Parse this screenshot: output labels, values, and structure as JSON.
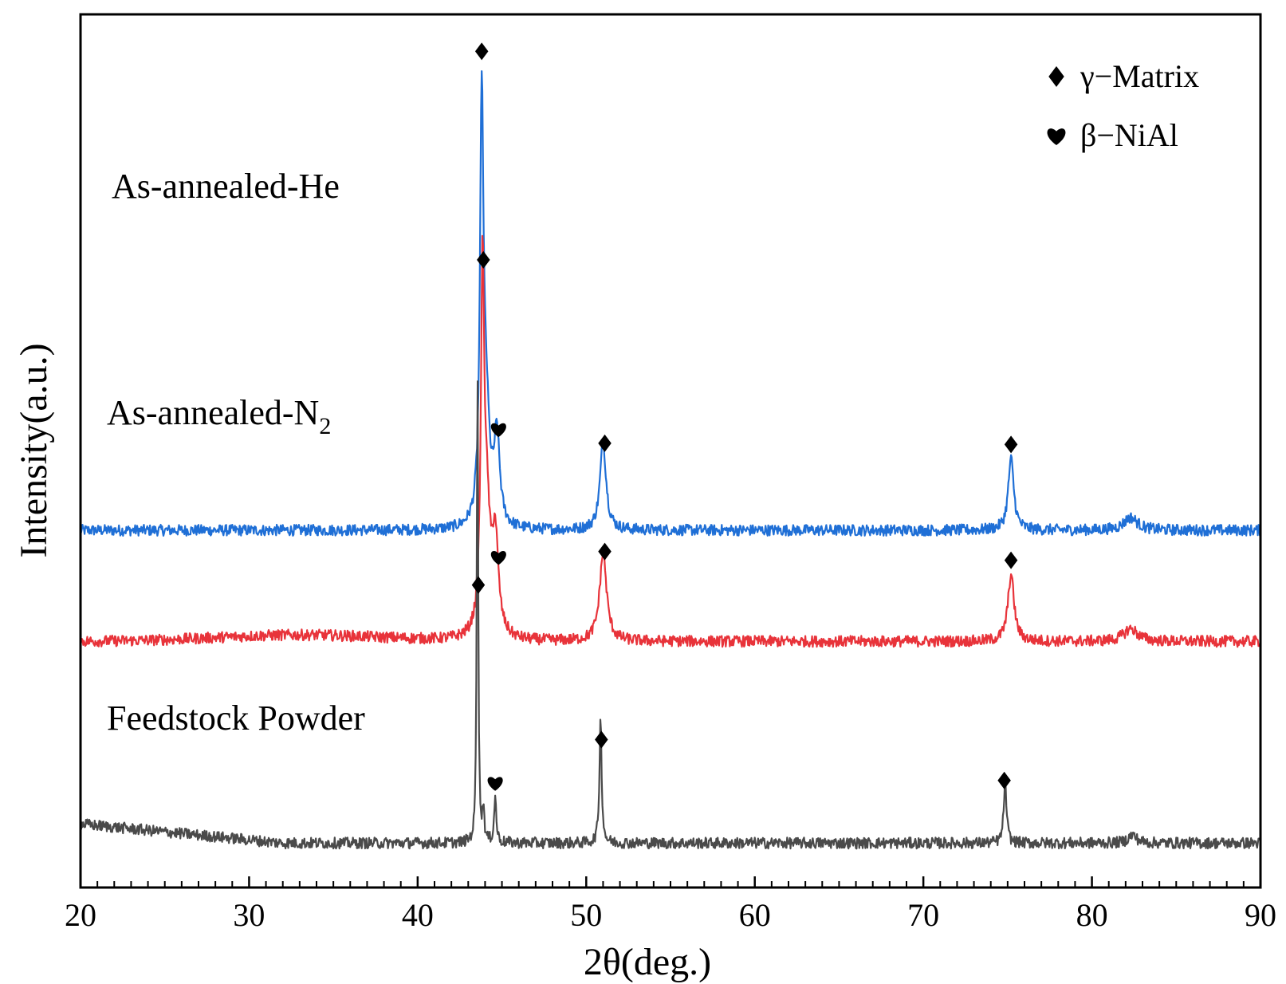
{
  "chart_data": {
    "type": "line",
    "xlabel": "2θ(deg.)",
    "ylabel": "Intensity(a.u.)",
    "xlim": [
      20,
      90
    ],
    "x_ticks": [
      "20",
      "30",
      "40",
      "50",
      "60",
      "70",
      "80",
      "90"
    ],
    "x_minor_step": 1,
    "y_ticks_shown": false,
    "grid": false,
    "legend": {
      "position": "top-right",
      "entries": [
        {
          "marker": "diamond",
          "label": "γ−Matrix"
        },
        {
          "marker": "heart",
          "label": "β−NiAl"
        }
      ]
    },
    "series": [
      {
        "name": "As-annealed-He",
        "label_main": "As-annealed-He",
        "label_sub": "",
        "color": "#1f6fd6",
        "baseline": 2.25,
        "peaks": [
          {
            "x": 43.8,
            "height": 2.55,
            "width": 0.12
          },
          {
            "x": 44.05,
            "height": 0.7,
            "width": 0.25
          },
          {
            "x": 44.7,
            "height": 0.55,
            "width": 0.2
          },
          {
            "x": 51.0,
            "height": 0.55,
            "width": 0.22
          },
          {
            "x": 75.2,
            "height": 0.45,
            "width": 0.2
          },
          {
            "x": 82.3,
            "height": 0.08,
            "width": 0.5
          }
        ],
        "markers": [
          {
            "x": 43.8,
            "symbol": "diamond"
          },
          {
            "x": 44.8,
            "symbol": "heart"
          },
          {
            "x": 51.1,
            "symbol": "diamond"
          },
          {
            "x": 75.2,
            "symbol": "diamond"
          }
        ]
      },
      {
        "name": "As-annealed-N2",
        "label_main": "As-annealed-N",
        "label_sub": "2",
        "color": "#e8333a",
        "baseline": 1.55,
        "peaks": [
          {
            "x": 43.85,
            "height": 2.15,
            "width": 0.12
          },
          {
            "x": 44.1,
            "height": 0.7,
            "width": 0.25
          },
          {
            "x": 44.6,
            "height": 0.6,
            "width": 0.22
          },
          {
            "x": 51.0,
            "height": 0.55,
            "width": 0.25
          },
          {
            "x": 75.2,
            "height": 0.42,
            "width": 0.22
          },
          {
            "x": 82.3,
            "height": 0.08,
            "width": 0.5
          }
        ],
        "markers": [
          {
            "x": 43.9,
            "symbol": "diamond"
          },
          {
            "x": 44.8,
            "symbol": "heart"
          },
          {
            "x": 51.1,
            "symbol": "diamond"
          },
          {
            "x": 75.2,
            "symbol": "diamond"
          }
        ]
      },
      {
        "name": "Feedstock Powder",
        "label_main": "Feedstock Powder",
        "label_sub": "",
        "color": "#4a4a4a",
        "baseline": 0.28,
        "peaks": [
          {
            "x": 43.55,
            "height": 3.05,
            "width": 0.05
          },
          {
            "x": 43.9,
            "height": 0.22,
            "width": 0.06
          },
          {
            "x": 44.6,
            "height": 0.28,
            "width": 0.08
          },
          {
            "x": 50.85,
            "height": 0.78,
            "width": 0.08
          },
          {
            "x": 74.85,
            "height": 0.38,
            "width": 0.1
          },
          {
            "x": 82.4,
            "height": 0.05,
            "width": 0.3
          }
        ],
        "markers": [
          {
            "x": 43.6,
            "symbol": "diamond"
          },
          {
            "x": 44.6,
            "symbol": "heart"
          },
          {
            "x": 50.9,
            "symbol": "diamond"
          },
          {
            "x": 74.8,
            "symbol": "diamond"
          }
        ]
      }
    ]
  }
}
